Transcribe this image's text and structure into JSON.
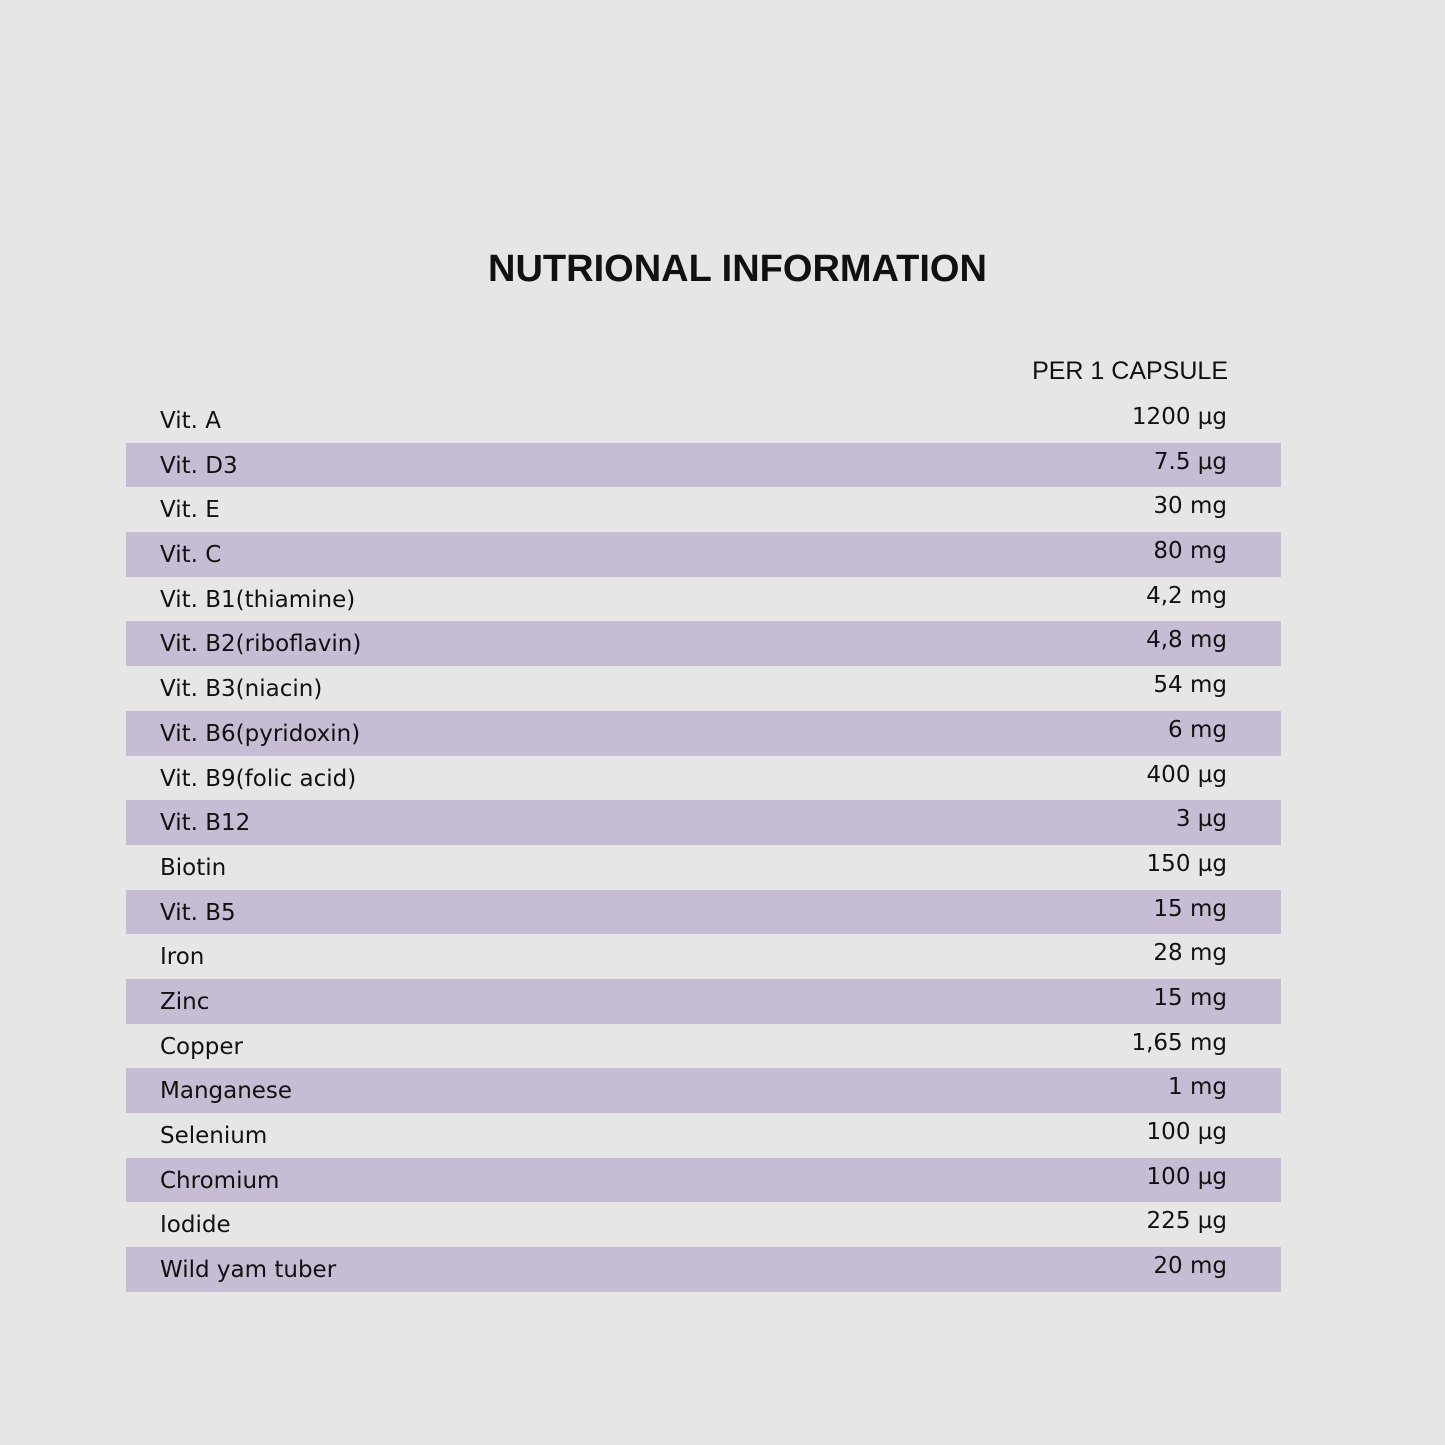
{
  "header": {
    "title": "NUTRIONAL INFORMATION",
    "column": "PER 1 CAPSULE"
  },
  "table": {
    "rows": [
      [
        "Vit. A",
        "1200 µg"
      ],
      [
        "Vit. D3",
        "7.5 µg"
      ],
      [
        "Vit. E",
        "30 mg"
      ],
      [
        "Vit. C",
        "80 mg"
      ],
      [
        "Vit. B1(thiamine)",
        "4,2 mg"
      ],
      [
        "Vit. B2(riboflavin)",
        "4,8 mg"
      ],
      [
        "Vit. B3(niacin)",
        "54 mg"
      ],
      [
        "Vit. B6(pyridoxin)",
        "6 mg"
      ],
      [
        "Vit. B9(folic acid)",
        "400 µg"
      ],
      [
        "Vit. B12",
        "3 µg"
      ],
      [
        "Biotin",
        "150 µg"
      ],
      [
        "Vit. B5",
        "15 mg"
      ],
      [
        "Iron",
        "28 mg"
      ],
      [
        "Zinc",
        "15 mg"
      ],
      [
        "Copper",
        "1,65 mg"
      ],
      [
        "Manganese",
        "1 mg"
      ],
      [
        "Selenium",
        "100 µg"
      ],
      [
        "Chromium",
        "100 µg"
      ],
      [
        "Iodide",
        "225 µg"
      ],
      [
        "Wild yam tuber",
        "20 mg"
      ]
    ]
  }
}
